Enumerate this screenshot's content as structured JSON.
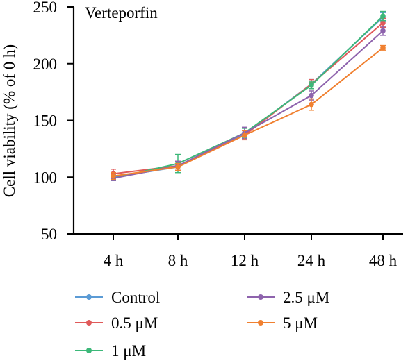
{
  "chart_data": {
    "type": "line",
    "title": "Verteporfin",
    "xlabel": "",
    "ylabel": "Cell viability (% of 0 h)",
    "categories": [
      "4 h",
      "8 h",
      "12 h",
      "24 h",
      "48 h"
    ],
    "ylim": [
      50,
      250
    ],
    "yticks": [
      "50",
      "100",
      "150",
      "200",
      "250"
    ],
    "grid": false,
    "legend_position": "bottom",
    "series": [
      {
        "name": "Control",
        "color": "#5b9bd5",
        "values": [
          100,
          109,
          138,
          182,
          241
        ],
        "errors": [
          2,
          3,
          3,
          4,
          4
        ]
      },
      {
        "name": "0.5 μM",
        "color": "#e05a5a",
        "values": [
          103,
          110,
          137,
          182,
          236
        ],
        "errors": [
          4,
          4,
          4,
          4,
          4
        ]
      },
      {
        "name": "1 μM",
        "color": "#3cb879",
        "values": [
          99,
          112,
          139,
          181,
          242
        ],
        "errors": [
          2,
          8,
          4,
          3,
          4
        ]
      },
      {
        "name": "2.5 μM",
        "color": "#8e63ad",
        "values": [
          99,
          110,
          139,
          172,
          229
        ],
        "errors": [
          2,
          4,
          5,
          4,
          4
        ]
      },
      {
        "name": "5 μM",
        "color": "#f08030",
        "values": [
          101,
          109,
          137,
          164,
          214
        ],
        "errors": [
          3,
          3,
          4,
          5,
          2
        ]
      }
    ]
  }
}
